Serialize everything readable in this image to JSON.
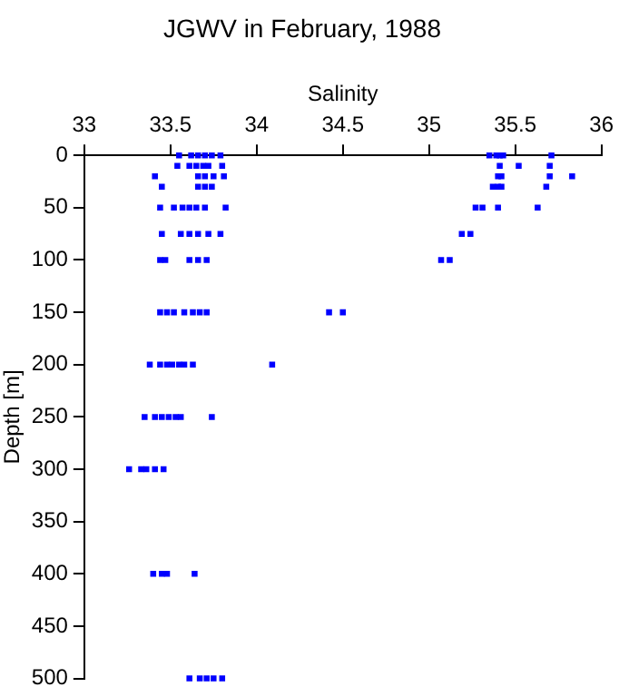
{
  "chart_data": {
    "type": "scatter",
    "title": "JGWV in February, 1988",
    "xlabel": "Salinity",
    "ylabel": "Depth [m]",
    "xlim": [
      33,
      36
    ],
    "xticks": [
      33,
      33.5,
      34,
      34.5,
      35,
      35.5,
      36
    ],
    "ylim": [
      500,
      0
    ],
    "yticks": [
      0,
      50,
      100,
      150,
      200,
      250,
      300,
      350,
      400,
      450,
      500
    ],
    "grid": false,
    "legend": false,
    "marker": "square",
    "series": [
      {
        "color": "#0000ff",
        "x": [
          33.55,
          33.62,
          33.66,
          33.7,
          33.74,
          33.79,
          35.35,
          35.39,
          35.41,
          35.43,
          35.71,
          33.54,
          33.61,
          33.65,
          33.69,
          33.72,
          33.8,
          35.41,
          35.52,
          35.7,
          33.41,
          33.66,
          33.7,
          33.75,
          33.81,
          35.4,
          35.42,
          35.7,
          35.83,
          33.45,
          33.66,
          33.7,
          33.74,
          35.37,
          35.4,
          35.42,
          35.68,
          33.44,
          33.52,
          33.57,
          33.61,
          33.65,
          33.7,
          33.82,
          35.27,
          35.31,
          35.4,
          35.63,
          33.45,
          33.56,
          33.61,
          33.66,
          33.72,
          33.79,
          35.19,
          35.24,
          33.44,
          33.47,
          33.61,
          33.66,
          33.71,
          35.07,
          35.12,
          33.44,
          33.48,
          33.52,
          33.58,
          33.63,
          33.67,
          33.71,
          34.42,
          34.5,
          33.38,
          33.44,
          33.48,
          33.51,
          33.55,
          33.58,
          33.63,
          34.09,
          33.35,
          33.41,
          33.45,
          33.49,
          33.53,
          33.56,
          33.74,
          33.26,
          33.33,
          33.36,
          33.41,
          33.46,
          33.4,
          33.45,
          33.48,
          33.64,
          33.61,
          33.67,
          33.71,
          33.75,
          33.8
        ],
        "values": [
          0,
          0,
          0,
          0,
          0,
          0,
          0,
          0,
          0,
          0,
          0,
          10,
          10,
          10,
          10,
          10,
          10,
          10,
          10,
          10,
          20,
          20,
          20,
          20,
          20,
          20,
          20,
          20,
          20,
          30,
          30,
          30,
          30,
          30,
          30,
          30,
          30,
          50,
          50,
          50,
          50,
          50,
          50,
          50,
          50,
          50,
          50,
          50,
          75,
          75,
          75,
          75,
          75,
          75,
          75,
          75,
          100,
          100,
          100,
          100,
          100,
          100,
          100,
          150,
          150,
          150,
          150,
          150,
          150,
          150,
          150,
          150,
          200,
          200,
          200,
          200,
          200,
          200,
          200,
          200,
          250,
          250,
          250,
          250,
          250,
          250,
          250,
          300,
          300,
          300,
          300,
          300,
          400,
          400,
          400,
          400,
          500,
          500,
          500,
          500,
          500
        ]
      }
    ]
  }
}
